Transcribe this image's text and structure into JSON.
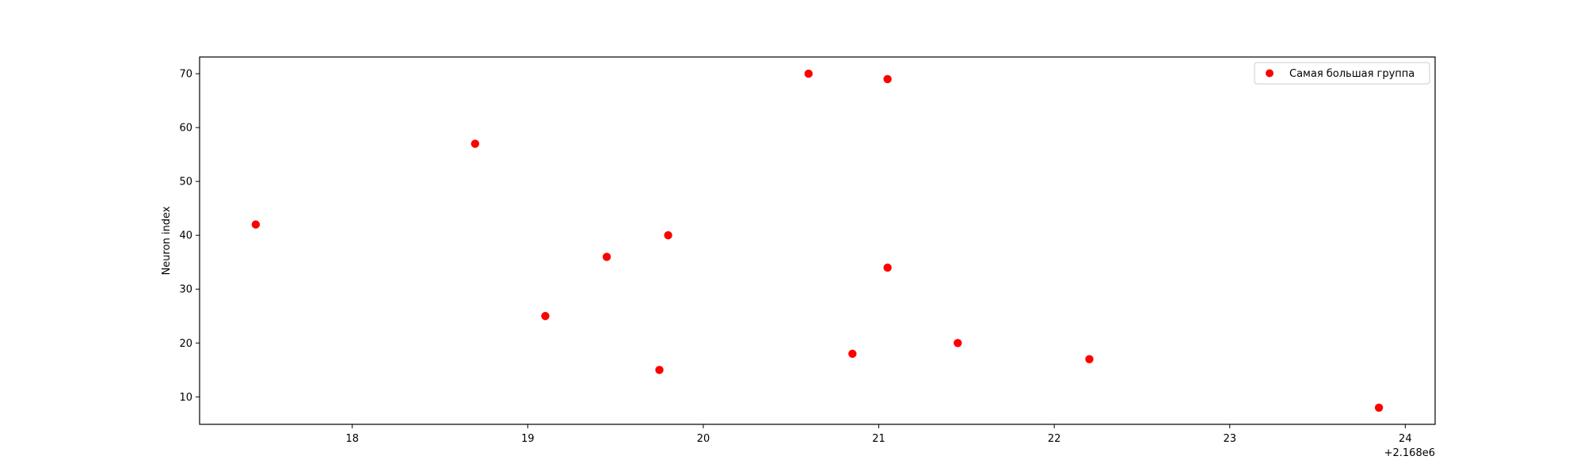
{
  "chart_data": {
    "type": "scatter",
    "title": "",
    "xlabel": "",
    "ylabel": "Neuron index",
    "x_offset_text": "+2.168e6",
    "xlim": [
      17.13,
      24.17
    ],
    "ylim": [
      4.9,
      73.1
    ],
    "x_ticks": [
      18,
      19,
      20,
      21,
      22,
      23,
      24
    ],
    "y_ticks": [
      10,
      20,
      30,
      40,
      50,
      60,
      70
    ],
    "grid": false,
    "legend_position": "top-right",
    "series": [
      {
        "name": "Самая большая группа",
        "color": "#ff0000",
        "marker": "circle",
        "points": [
          {
            "x": 17.45,
            "y": 42
          },
          {
            "x": 18.7,
            "y": 57
          },
          {
            "x": 19.1,
            "y": 25
          },
          {
            "x": 19.45,
            "y": 36
          },
          {
            "x": 19.75,
            "y": 15
          },
          {
            "x": 19.8,
            "y": 40
          },
          {
            "x": 20.6,
            "y": 70
          },
          {
            "x": 20.85,
            "y": 18
          },
          {
            "x": 21.05,
            "y": 69
          },
          {
            "x": 21.05,
            "y": 34
          },
          {
            "x": 21.45,
            "y": 20
          },
          {
            "x": 22.2,
            "y": 17
          },
          {
            "x": 23.85,
            "y": 8
          }
        ]
      }
    ]
  }
}
